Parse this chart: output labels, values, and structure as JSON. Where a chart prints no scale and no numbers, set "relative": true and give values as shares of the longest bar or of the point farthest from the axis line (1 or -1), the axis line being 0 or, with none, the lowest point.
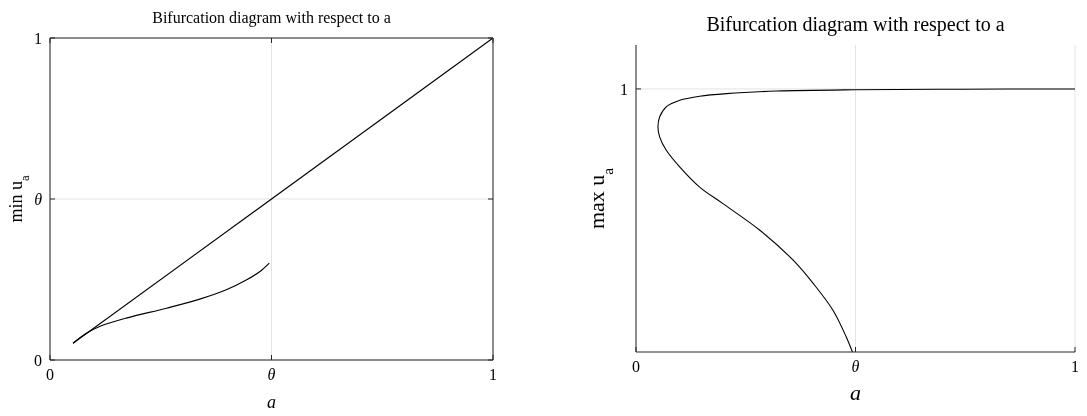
{
  "chart_data": [
    {
      "type": "line",
      "title": "Bifurcation diagram with respect to a",
      "xlabel": "a",
      "ylabel": "min u$_{a}$",
      "xlim": [
        0,
        1
      ],
      "ylim": [
        0,
        1
      ],
      "xticks": [
        {
          "value": 0,
          "label": "0"
        },
        {
          "value": 0.5,
          "label": "θ"
        },
        {
          "value": 1,
          "label": "1"
        }
      ],
      "yticks": [
        {
          "value": 0,
          "label": "0"
        },
        {
          "value": 0.5,
          "label": "θ"
        },
        {
          "value": 1,
          "label": "1"
        }
      ],
      "grid": true,
      "series": [
        {
          "color": "#000000",
          "x": [
            0.052,
            1
          ],
          "values": [
            0.052,
            1
          ]
        },
        {
          "color": "#000000",
          "x": [
            0.052,
            0.082,
            0.112,
            0.172,
            0.263,
            0.338,
            0.398,
            0.444,
            0.474,
            0.495
          ],
          "values": [
            0.052,
            0.083,
            0.104,
            0.13,
            0.161,
            0.189,
            0.218,
            0.249,
            0.275,
            0.301
          ]
        }
      ]
    },
    {
      "type": "line",
      "title": "Bifurcation diagram with respect to a",
      "xlabel": "a",
      "ylabel": "max u$_{a}$",
      "xlim": [
        0,
        1
      ],
      "xticks": [
        0,
        {
          "value": 0.5,
          "label": "θ"
        },
        1
      ],
      "relative": true,
      "grid": "x",
      "ref_lines": [
        {
          "axis": "y",
          "value": 1,
          "label": "1"
        }
      ],
      "series": [
        {
          "color": "#000000",
          "x": [
            0.493,
            0.479,
            0.449,
            0.404,
            0.358,
            0.282,
            0.198,
            0.145,
            0.1,
            0.069,
            0.054,
            0.05,
            0.054,
            0.069,
            0.1,
            0.145,
            0.206,
            0.32,
            0.498,
            0.738,
            1
          ],
          "values": [
            0,
            0.057,
            0.158,
            0.26,
            0.349,
            0.463,
            0.564,
            0.627,
            0.703,
            0.767,
            0.817,
            0.856,
            0.894,
            0.932,
            0.957,
            0.972,
            0.982,
            0.992,
            0.997,
            0.999,
            1
          ]
        }
      ]
    }
  ]
}
